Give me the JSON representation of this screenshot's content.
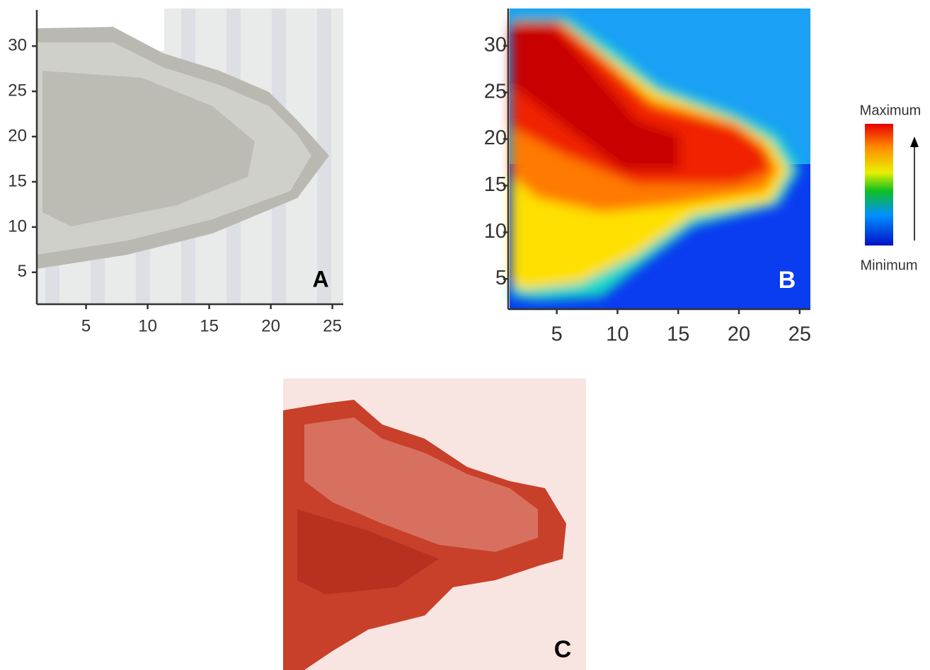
{
  "panels": [
    {
      "label": "A",
      "xlim": [
        1,
        26
      ],
      "ylim": [
        1,
        34
      ],
      "xticks": [
        5,
        10,
        15,
        20,
        25
      ],
      "yticks": [
        5,
        10,
        15,
        20,
        25,
        30
      ]
    },
    {
      "label": "B",
      "xlim": [
        1,
        26
      ],
      "ylim": [
        1,
        34
      ],
      "xticks": [
        5,
        10,
        15,
        20,
        25
      ],
      "yticks": [
        5,
        10,
        15,
        20,
        25,
        30
      ]
    },
    {
      "label": "C"
    }
  ],
  "colorbar": {
    "max_label": "Maximum",
    "min_label": "Minimum"
  }
}
